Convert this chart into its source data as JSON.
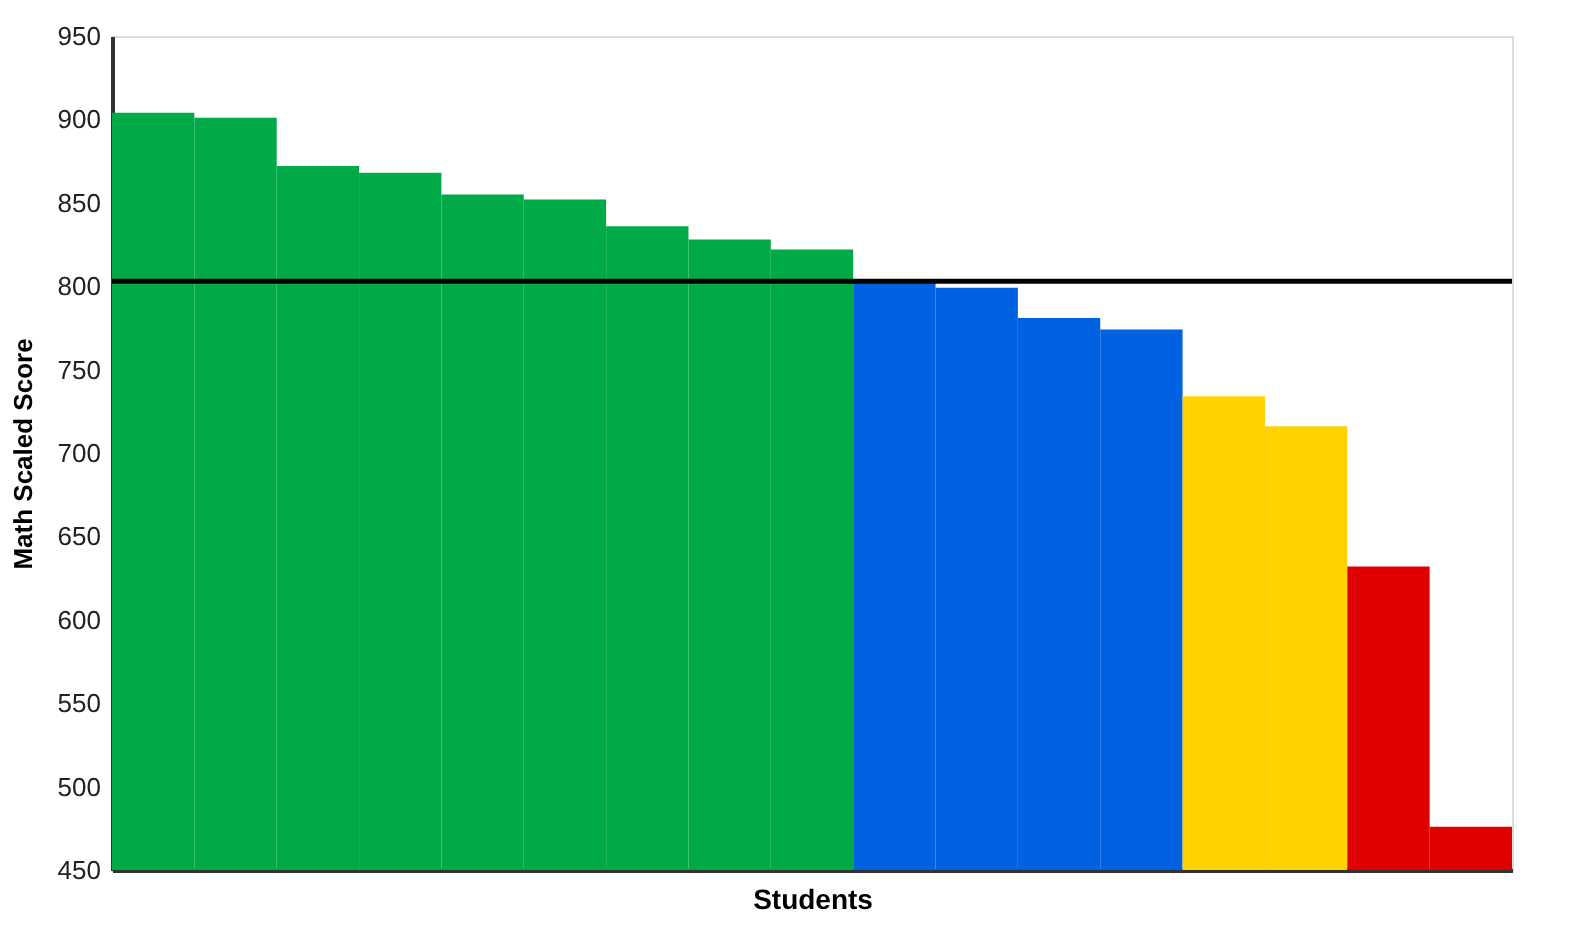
{
  "chart_data": {
    "type": "bar",
    "xlabel": "Students",
    "ylabel": "Math Scaled Score",
    "categories": [
      null,
      null,
      null,
      null,
      null,
      null,
      null,
      null,
      null,
      null,
      null,
      null,
      null,
      null,
      null,
      null,
      null
    ],
    "values": [
      904,
      901,
      872,
      868,
      855,
      852,
      836,
      828,
      822,
      802,
      799,
      781,
      774,
      734,
      716,
      632,
      476
    ],
    "colors": [
      "#00aa46",
      "#00aa46",
      "#00aa46",
      "#00aa46",
      "#00aa46",
      "#00aa46",
      "#00aa46",
      "#00aa46",
      "#00aa46",
      "#0062e0",
      "#0062e0",
      "#0062e0",
      "#0062e0",
      "#ffd200",
      "#ffd200",
      "#e00000",
      "#e00000"
    ],
    "ylim": [
      450,
      950
    ],
    "yticks": [
      450,
      500,
      550,
      600,
      650,
      700,
      750,
      800,
      850,
      900,
      950
    ],
    "ref_lines": [
      {
        "axis": "y",
        "value": 803,
        "color": "#000000"
      }
    ],
    "grid": false
  }
}
